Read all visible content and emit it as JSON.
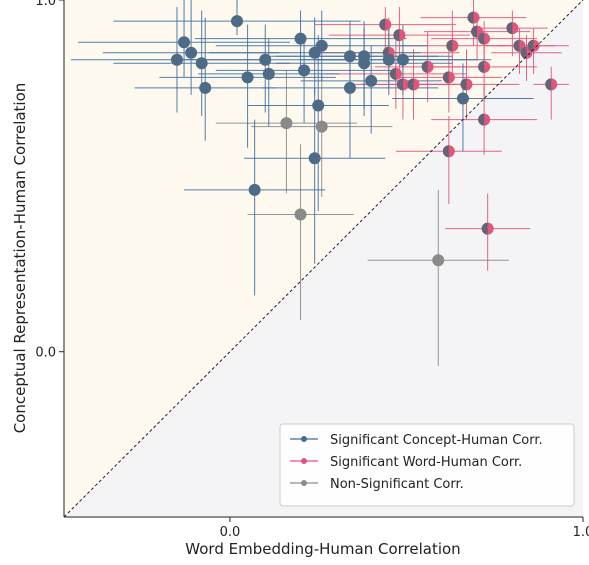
{
  "chart_data": {
    "type": "scatter",
    "title": "",
    "xlabel": "Word Embedding-Human Correlation",
    "ylabel": "Conceptual Representation-Human Correlation",
    "xlim": [
      -0.47,
      1.0
    ],
    "ylim": [
      -0.47,
      1.0
    ],
    "x_ticks": [
      0.0,
      1.0
    ],
    "x_tick_labels": [
      "0.0",
      "1.0"
    ],
    "y_ticks": [
      0.0,
      1.0
    ],
    "y_tick_labels": [
      "0.0",
      "1.0"
    ],
    "grid": false,
    "diagonal_line": "y = x (dashed)",
    "legend_position": "bottom-right",
    "colors": {
      "upper_region": "#fdf9ef",
      "lower_region": "#f4f4f6",
      "concept_sig": "#3f6f9f",
      "word_sig": "#e0557a",
      "non_sig": "#8a8a8a"
    },
    "series": [
      {
        "name": "Significant Concept-Human Corr.",
        "color": "#3f6f9f",
        "points": [
          {
            "x": 0.02,
            "y": 0.94,
            "xerr": [
              0.35,
              0.35
            ],
            "yerr": [
              0.04,
              0.1
            ]
          },
          {
            "x": -0.13,
            "y": 0.88,
            "xerr": [
              0.3,
              0.3
            ],
            "yerr": [
              0.1,
              0.15
            ]
          },
          {
            "x": -0.11,
            "y": 0.85,
            "xerr": [
              0.25,
              0.25
            ],
            "yerr": [
              0.12,
              0.15
            ]
          },
          {
            "x": -0.15,
            "y": 0.83,
            "xerr": [
              0.3,
              0.25
            ],
            "yerr": [
              0.15,
              0.15
            ]
          },
          {
            "x": -0.08,
            "y": 0.82,
            "xerr": [
              0.25,
              0.25
            ],
            "yerr": [
              0.15,
              0.15
            ]
          },
          {
            "x": -0.07,
            "y": 0.75,
            "xerr": [
              0.2,
              0.2
            ],
            "yerr": [
              0.15,
              0.2
            ]
          },
          {
            "x": 0.05,
            "y": 0.78,
            "xerr": [
              0.25,
              0.25
            ],
            "yerr": [
              0.2,
              0.15
            ]
          },
          {
            "x": 0.1,
            "y": 0.83,
            "xerr": [
              0.25,
              0.25
            ],
            "yerr": [
              0.15,
              0.1
            ]
          },
          {
            "x": 0.11,
            "y": 0.79,
            "xerr": [
              0.2,
              0.2
            ],
            "yerr": [
              0.15,
              0.1
            ]
          },
          {
            "x": 0.2,
            "y": 0.89,
            "xerr": [
              0.3,
              0.3
            ],
            "yerr": [
              0.1,
              0.08
            ]
          },
          {
            "x": 0.21,
            "y": 0.8,
            "xerr": [
              0.25,
              0.25
            ],
            "yerr": [
              0.15,
              0.1
            ]
          },
          {
            "x": 0.24,
            "y": 0.85,
            "xerr": [
              0.3,
              0.3
            ],
            "yerr": [
              0.12,
              0.1
            ]
          },
          {
            "x": 0.26,
            "y": 0.87,
            "xerr": [
              0.3,
              0.3
            ],
            "yerr": [
              0.1,
              0.1
            ]
          },
          {
            "x": 0.25,
            "y": 0.7,
            "xerr": [
              0.2,
              0.2
            ],
            "yerr": [
              0.3,
              0.2
            ]
          },
          {
            "x": 0.24,
            "y": 0.55,
            "xerr": [
              0.2,
              0.2
            ],
            "yerr": [
              0.3,
              0.2
            ]
          },
          {
            "x": 0.07,
            "y": 0.46,
            "xerr": [
              0.2,
              0.2
            ],
            "yerr": [
              0.3,
              0.2
            ]
          },
          {
            "x": 0.34,
            "y": 0.84,
            "xerr": [
              0.25,
              0.25
            ],
            "yerr": [
              0.15,
              0.1
            ]
          },
          {
            "x": 0.34,
            "y": 0.75,
            "xerr": [
              0.25,
              0.25
            ],
            "yerr": [
              0.2,
              0.15
            ]
          },
          {
            "x": 0.38,
            "y": 0.84,
            "xerr": [
              0.25,
              0.25
            ],
            "yerr": [
              0.15,
              0.1
            ]
          },
          {
            "x": 0.38,
            "y": 0.82,
            "xerr": [
              0.25,
              0.25
            ],
            "yerr": [
              0.15,
              0.1
            ]
          },
          {
            "x": 0.4,
            "y": 0.77,
            "xerr": [
              0.2,
              0.2
            ],
            "yerr": [
              0.15,
              0.1
            ]
          },
          {
            "x": 0.45,
            "y": 0.83,
            "xerr": [
              0.25,
              0.25
            ],
            "yerr": [
              0.1,
              0.1
            ]
          },
          {
            "x": 0.49,
            "y": 0.83,
            "xerr": [
              0.25,
              0.25
            ],
            "yerr": [
              0.1,
              0.1
            ]
          },
          {
            "x": 0.66,
            "y": 0.72,
            "xerr": [
              0.2,
              0.2
            ],
            "yerr": [
              0.15,
              0.1
            ]
          }
        ]
      },
      {
        "name": "Significant Word-Human Corr.",
        "color": "#e0557a",
        "points": [
          {
            "x": 0.44,
            "y": 0.93,
            "xerr": [
              0.2,
              0.2
            ],
            "yerr": [
              0.1,
              0.05
            ]
          },
          {
            "x": 0.45,
            "y": 0.85,
            "xerr": [
              0.2,
              0.2
            ],
            "yerr": [
              0.1,
              0.1
            ]
          },
          {
            "x": 0.47,
            "y": 0.79,
            "xerr": [
              0.2,
              0.2
            ],
            "yerr": [
              0.1,
              0.1
            ]
          },
          {
            "x": 0.48,
            "y": 0.9,
            "xerr": [
              0.2,
              0.2
            ],
            "yerr": [
              0.1,
              0.08
            ]
          },
          {
            "x": 0.49,
            "y": 0.76,
            "xerr": [
              0.15,
              0.15
            ],
            "yerr": [
              0.1,
              0.1
            ]
          },
          {
            "x": 0.52,
            "y": 0.76,
            "xerr": [
              0.15,
              0.15
            ],
            "yerr": [
              0.1,
              0.1
            ]
          },
          {
            "x": 0.56,
            "y": 0.81,
            "xerr": [
              0.15,
              0.15
            ],
            "yerr": [
              0.1,
              0.1
            ]
          },
          {
            "x": 0.62,
            "y": 0.78,
            "xerr": [
              0.15,
              0.15
            ],
            "yerr": [
              0.1,
              0.1
            ]
          },
          {
            "x": 0.63,
            "y": 0.87,
            "xerr": [
              0.15,
              0.15
            ],
            "yerr": [
              0.1,
              0.1
            ]
          },
          {
            "x": 0.67,
            "y": 0.76,
            "xerr": [
              0.15,
              0.15
            ],
            "yerr": [
              0.1,
              0.1
            ]
          },
          {
            "x": 0.69,
            "y": 0.95,
            "xerr": [
              0.15,
              0.15
            ],
            "yerr": [
              0.08,
              0.05
            ]
          },
          {
            "x": 0.7,
            "y": 0.91,
            "xerr": [
              0.15,
              0.15
            ],
            "yerr": [
              0.08,
              0.05
            ]
          },
          {
            "x": 0.72,
            "y": 0.89,
            "xerr": [
              0.15,
              0.15
            ],
            "yerr": [
              0.1,
              0.05
            ]
          },
          {
            "x": 0.72,
            "y": 0.81,
            "xerr": [
              0.15,
              0.15
            ],
            "yerr": [
              0.1,
              0.1
            ]
          },
          {
            "x": 0.72,
            "y": 0.66,
            "xerr": [
              0.15,
              0.15
            ],
            "yerr": [
              0.1,
              0.1
            ]
          },
          {
            "x": 0.62,
            "y": 0.57,
            "xerr": [
              0.15,
              0.15
            ],
            "yerr": [
              0.15,
              0.1
            ]
          },
          {
            "x": 0.8,
            "y": 0.92,
            "xerr": [
              0.1,
              0.1
            ],
            "yerr": [
              0.08,
              0.05
            ]
          },
          {
            "x": 0.82,
            "y": 0.87,
            "xerr": [
              0.1,
              0.1
            ],
            "yerr": [
              0.08,
              0.05
            ]
          },
          {
            "x": 0.84,
            "y": 0.85,
            "xerr": [
              0.1,
              0.1
            ],
            "yerr": [
              0.08,
              0.05
            ]
          },
          {
            "x": 0.86,
            "y": 0.87,
            "xerr": [
              0.1,
              0.1
            ],
            "yerr": [
              0.08,
              0.05
            ]
          },
          {
            "x": 0.91,
            "y": 0.76,
            "xerr": [
              0.05,
              0.05
            ],
            "yerr": [
              0.1,
              0.05
            ]
          },
          {
            "x": 0.73,
            "y": 0.35,
            "xerr": [
              0.12,
              0.12
            ],
            "yerr": [
              0.12,
              0.1
            ]
          }
        ]
      },
      {
        "name": "Non-Significant Corr.",
        "color": "#8a8a8a",
        "points": [
          {
            "x": 0.16,
            "y": 0.65,
            "xerr": [
              0.2,
              0.2
            ],
            "yerr": [
              0.2,
              0.15
            ]
          },
          {
            "x": 0.26,
            "y": 0.64,
            "xerr": [
              0.2,
              0.2
            ],
            "yerr": [
              0.2,
              0.15
            ]
          },
          {
            "x": 0.2,
            "y": 0.39,
            "xerr": [
              0.15,
              0.15
            ],
            "yerr": [
              0.3,
              0.2
            ]
          },
          {
            "x": 0.59,
            "y": 0.26,
            "xerr": [
              0.2,
              0.2
            ],
            "yerr": [
              0.3,
              0.2
            ]
          }
        ]
      }
    ]
  }
}
